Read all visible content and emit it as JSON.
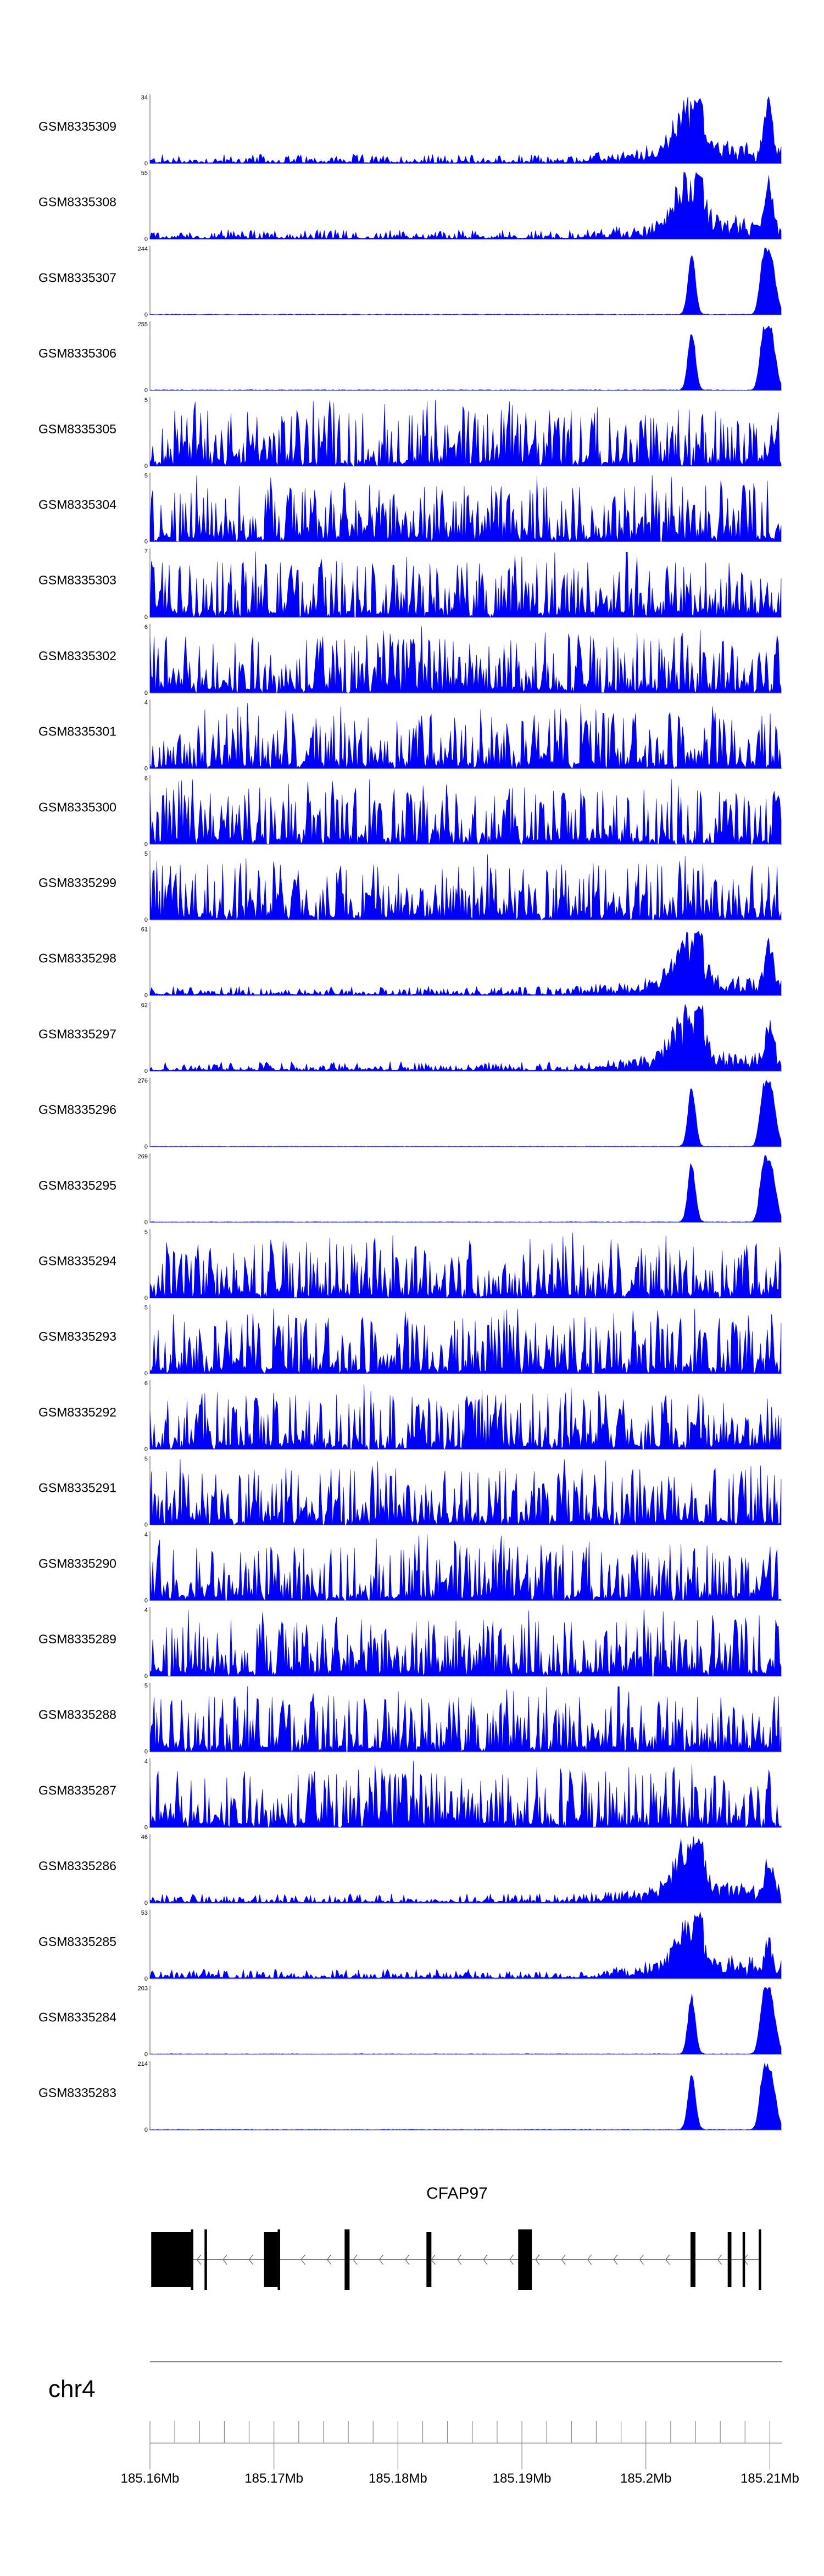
{
  "chart_data": {
    "type": "area",
    "title": "",
    "xlabel": "",
    "ylabel": "",
    "chromosome": "chr4",
    "gene": "CFAP97",
    "fill_color": "#0000ff",
    "xlim": [
      185.16,
      185.211
    ],
    "x_ticks": [
      "185.16Mb",
      "185.17Mb",
      "185.18Mb",
      "185.19Mb",
      "185.2Mb",
      "185.21Mb"
    ],
    "x_tick_values": [
      185.16,
      185.17,
      185.18,
      185.19,
      185.2,
      185.21
    ],
    "tracks": [
      {
        "name": "GSM8335309",
        "ymax": 34,
        "ymax_label": "34",
        "pattern": "peaks",
        "peak_frac": 1.0
      },
      {
        "name": "GSM8335308",
        "ymax": 55,
        "ymax_label": "55",
        "pattern": "peaks",
        "peak_frac": 0.8
      },
      {
        "name": "GSM8335307",
        "ymax": 244,
        "ymax_label": "244",
        "pattern": "sharp"
      },
      {
        "name": "GSM8335306",
        "ymax": 255,
        "ymax_label": "255",
        "pattern": "sharp"
      },
      {
        "name": "GSM8335305",
        "ymax": 5,
        "ymax_label": "5",
        "pattern": "noise"
      },
      {
        "name": "GSM8335304",
        "ymax": 5,
        "ymax_label": "5",
        "pattern": "noise"
      },
      {
        "name": "GSM8335303",
        "ymax": 7,
        "ymax_label": "7",
        "pattern": "noise"
      },
      {
        "name": "GSM8335302",
        "ymax": 6,
        "ymax_label": "6",
        "pattern": "noise"
      },
      {
        "name": "GSM8335301",
        "ymax": 4,
        "ymax_label": "4",
        "pattern": "noise"
      },
      {
        "name": "GSM8335300",
        "ymax": 6,
        "ymax_label": "6",
        "pattern": "noise"
      },
      {
        "name": "GSM8335299",
        "ymax": 5,
        "ymax_label": "5",
        "pattern": "noise"
      },
      {
        "name": "GSM8335298",
        "ymax": 61,
        "ymax_label": "61",
        "pattern": "peaks",
        "peak_frac": 0.85
      },
      {
        "name": "GSM8335297",
        "ymax": 62,
        "ymax_label": "62",
        "pattern": "peaks",
        "peak_frac": 0.75
      },
      {
        "name": "GSM8335296",
        "ymax": 276,
        "ymax_label": "276",
        "pattern": "sharp"
      },
      {
        "name": "GSM8335295",
        "ymax": 269,
        "ymax_label": "269",
        "pattern": "sharp"
      },
      {
        "name": "GSM8335294",
        "ymax": 5,
        "ymax_label": "5",
        "pattern": "noise"
      },
      {
        "name": "GSM8335293",
        "ymax": 5,
        "ymax_label": "5",
        "pattern": "noise"
      },
      {
        "name": "GSM8335292",
        "ymax": 6,
        "ymax_label": "6",
        "pattern": "noise"
      },
      {
        "name": "GSM8335291",
        "ymax": 5,
        "ymax_label": "5",
        "pattern": "noise"
      },
      {
        "name": "GSM8335290",
        "ymax": 4,
        "ymax_label": "4",
        "pattern": "noise"
      },
      {
        "name": "GSM8335289",
        "ymax": 4,
        "ymax_label": "4",
        "pattern": "noise"
      },
      {
        "name": "GSM8335288",
        "ymax": 5,
        "ymax_label": "5",
        "pattern": "noise"
      },
      {
        "name": "GSM8335287",
        "ymax": 4,
        "ymax_label": "4",
        "pattern": "noise"
      },
      {
        "name": "GSM8335286",
        "ymax": 46,
        "ymax_label": "46",
        "pattern": "peaks",
        "peak_frac": 0.55
      },
      {
        "name": "GSM8335285",
        "ymax": 53,
        "ymax_label": "53",
        "pattern": "peaks",
        "peak_frac": 0.5
      },
      {
        "name": "GSM8335284",
        "ymax": 203,
        "ymax_label": "203",
        "pattern": "sharp"
      },
      {
        "name": "GSM8335283",
        "ymax": 214,
        "ymax_label": "214",
        "pattern": "sharp"
      }
    ],
    "gene_model": {
      "strand": "-",
      "exons": [
        {
          "start": 185.1601,
          "end": 185.1633,
          "tall": false
        },
        {
          "start": 185.1633,
          "end": 185.1635,
          "tall": true
        },
        {
          "start": 185.1644,
          "end": 185.1646,
          "tall": true
        },
        {
          "start": 185.1692,
          "end": 185.1703,
          "tall": false
        },
        {
          "start": 185.1703,
          "end": 185.1705,
          "tall": true
        },
        {
          "start": 185.1757,
          "end": 185.1761,
          "tall": true
        },
        {
          "start": 185.1823,
          "end": 185.1827,
          "tall": false
        },
        {
          "start": 185.1897,
          "end": 185.1908,
          "tall": true
        },
        {
          "start": 185.2036,
          "end": 185.204,
          "tall": false
        },
        {
          "start": 185.2066,
          "end": 185.2069,
          "tall": false
        },
        {
          "start": 185.2078,
          "end": 185.208,
          "tall": false
        },
        {
          "start": 185.2091,
          "end": 185.2093,
          "tall": true
        }
      ]
    }
  }
}
